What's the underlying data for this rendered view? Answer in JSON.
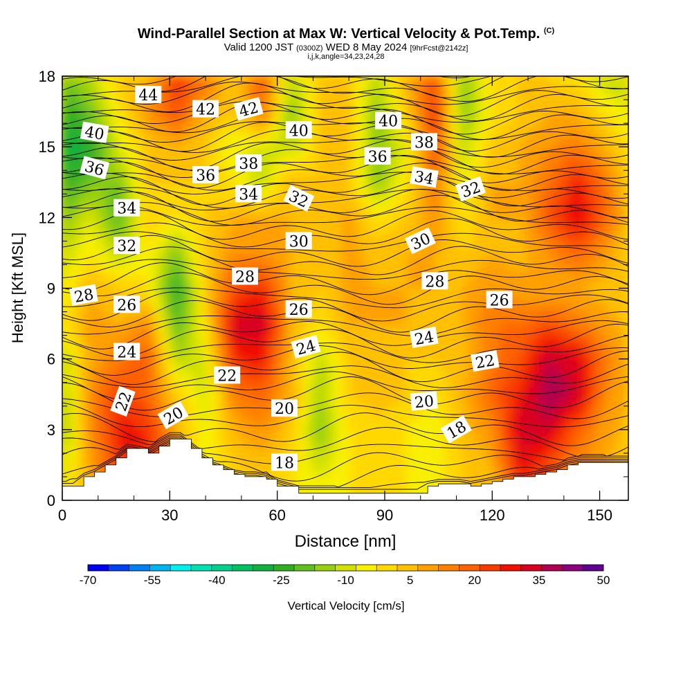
{
  "header": {
    "title": "Wind-Parallel Section at Max W: Vertical Velocity & Pot.Temp.",
    "copyright": "(C)",
    "valid_prefix": "Valid 1200 JST",
    "valid_utc": "(0300Z)",
    "valid_date": "WED 8 May 2024",
    "forecast": "[9hrFcst@2142z]",
    "indices": "i,j,k,angle=34,23,24,28"
  },
  "chart_data": {
    "type": "heatmap",
    "xlabel": "Distance [nm]",
    "ylabel": "Height [Kft MSL]",
    "xlim": [
      0,
      158
    ],
    "ylim": [
      0,
      18
    ],
    "x_ticks": [
      "0",
      "30",
      "60",
      "90",
      "120",
      "150"
    ],
    "x_tick_values": [
      0,
      30,
      60,
      90,
      120,
      150
    ],
    "y_ticks": [
      "0",
      "3",
      "6",
      "9",
      "12",
      "15",
      "18"
    ],
    "y_tick_values": [
      0,
      3,
      6,
      9,
      12,
      15,
      18
    ],
    "colorbar": {
      "label": "Vertical Velocity [cm/s]",
      "tick_labels": [
        "-70",
        "-55",
        "-40",
        "-25",
        "-10",
        "5",
        "20",
        "35",
        "50"
      ],
      "bin_edges": [
        -70,
        -65,
        -60,
        -55,
        -50,
        -45,
        -40,
        -35,
        -30,
        -25,
        -20,
        -15,
        -10,
        -5,
        0,
        5,
        10,
        15,
        20,
        25,
        30,
        35,
        40,
        45,
        50
      ],
      "colors": [
        "#0000f0",
        "#0040f0",
        "#0080f0",
        "#00b4f0",
        "#00f0f0",
        "#00e0b0",
        "#00d08a",
        "#00c060",
        "#10b040",
        "#30b020",
        "#60c020",
        "#98d010",
        "#d0e000",
        "#f8f000",
        "#ffd800",
        "#ffc000",
        "#ffa000",
        "#ff8000",
        "#ff6000",
        "#f83c00",
        "#f01000",
        "#d80020",
        "#b00050",
        "#8c0080",
        "#600090"
      ]
    },
    "w_field": {
      "x": [
        0,
        8,
        16,
        24,
        32,
        40,
        48,
        56,
        64,
        72,
        80,
        88,
        96,
        104,
        112,
        120,
        128,
        136,
        144,
        152,
        158
      ],
      "z": [
        0,
        1.5,
        3,
        4.5,
        6,
        7.5,
        9,
        10.5,
        12,
        13.5,
        15,
        16.5,
        18
      ],
      "values": [
        [
          -5,
          10,
          22,
          12,
          10,
          0,
          0,
          0,
          0,
          0,
          0,
          0,
          0,
          0,
          5,
          5,
          20,
          25,
          10,
          5,
          5
        ],
        [
          -8,
          12,
          28,
          30,
          15,
          -3,
          5,
          8,
          2,
          -8,
          0,
          2,
          0,
          -3,
          5,
          10,
          35,
          25,
          15,
          10,
          8
        ],
        [
          -15,
          15,
          32,
          30,
          10,
          -5,
          10,
          15,
          5,
          -15,
          0,
          3,
          0,
          -5,
          8,
          15,
          38,
          38,
          22,
          12,
          8
        ],
        [
          -12,
          15,
          28,
          22,
          5,
          -8,
          18,
          22,
          10,
          -12,
          5,
          8,
          5,
          0,
          10,
          22,
          32,
          45,
          38,
          15,
          10
        ],
        [
          -12,
          12,
          18,
          25,
          -10,
          -5,
          30,
          32,
          8,
          -10,
          5,
          10,
          5,
          5,
          8,
          18,
          25,
          40,
          35,
          18,
          10
        ],
        [
          0,
          12,
          10,
          15,
          -20,
          0,
          38,
          38,
          10,
          0,
          10,
          10,
          10,
          5,
          10,
          20,
          20,
          25,
          18,
          12,
          8
        ],
        [
          -5,
          10,
          5,
          0,
          -25,
          5,
          25,
          30,
          10,
          5,
          12,
          10,
          10,
          10,
          10,
          15,
          12,
          10,
          10,
          8,
          5
        ],
        [
          -10,
          0,
          -10,
          0,
          -15,
          5,
          15,
          15,
          10,
          5,
          12,
          8,
          10,
          10,
          5,
          10,
          8,
          15,
          22,
          12,
          5
        ],
        [
          -15,
          -5,
          -20,
          5,
          0,
          5,
          10,
          10,
          10,
          5,
          12,
          0,
          5,
          15,
          0,
          10,
          10,
          25,
          35,
          22,
          8
        ],
        [
          -25,
          -15,
          -15,
          5,
          5,
          5,
          0,
          -10,
          10,
          5,
          5,
          -15,
          0,
          20,
          -5,
          10,
          10,
          20,
          32,
          18,
          5
        ],
        [
          -30,
          -25,
          -5,
          5,
          10,
          5,
          -5,
          -5,
          -10,
          5,
          5,
          -15,
          -5,
          25,
          -10,
          5,
          10,
          15,
          18,
          10,
          0
        ],
        [
          -25,
          -15,
          0,
          15,
          25,
          10,
          5,
          20,
          -15,
          5,
          5,
          -15,
          5,
          30,
          -15,
          0,
          5,
          10,
          10,
          0,
          -5
        ],
        [
          -15,
          -10,
          5,
          10,
          30,
          20,
          5,
          25,
          -10,
          5,
          5,
          -10,
          10,
          25,
          -15,
          0,
          5,
          5,
          0,
          -10,
          -10
        ]
      ]
    },
    "terrain": {
      "x": [
        0,
        3,
        6,
        9,
        12,
        15,
        18,
        24,
        27,
        30,
        33,
        36,
        39,
        42,
        45,
        48,
        51,
        54,
        57,
        60,
        66,
        99,
        102,
        105,
        108,
        111,
        114,
        117,
        120,
        123,
        126,
        129,
        132,
        135,
        138,
        141,
        144,
        150,
        155,
        158
      ],
      "z": [
        0.6,
        0.6,
        1.0,
        1.2,
        1.5,
        1.8,
        2.2,
        2.0,
        2.3,
        2.6,
        2.6,
        2.2,
        1.8,
        1.5,
        1.3,
        1.1,
        1.0,
        1.0,
        0.9,
        0.6,
        0.3,
        0.3,
        0.6,
        0.7,
        0.7,
        0.7,
        0.6,
        0.7,
        0.8,
        0.9,
        1.0,
        1.0,
        1.1,
        1.2,
        1.3,
        1.5,
        1.6,
        1.6,
        1.6,
        1.6
      ]
    },
    "isentropes": {
      "levels_K": [
        16,
        16.7,
        17.3,
        18,
        18.7,
        19.3,
        20,
        20.7,
        21.3,
        22,
        22.5,
        23,
        23.5,
        24,
        24.5,
        25,
        25.5,
        26,
        26.5,
        27,
        27.5,
        28,
        28.5,
        29,
        29.5,
        30,
        30.5,
        31,
        31.5,
        32,
        32.5,
        33,
        33.5,
        34,
        34.5,
        35,
        35.5,
        36,
        36.5,
        37,
        37.5,
        38,
        38.5,
        39,
        39.5,
        40,
        40.5,
        41,
        41.5,
        42,
        42.5,
        43,
        43.5,
        44,
        44.5,
        45
      ],
      "theta_vs_height": {
        "height": [
          0,
          1.5,
          3,
          4.5,
          6,
          7.5,
          9,
          10.5,
          12,
          13.5,
          15,
          16.5,
          18
        ],
        "theta": [
          16,
          18,
          20,
          22,
          24,
          26,
          28,
          30,
          32,
          35,
          38,
          41,
          44
        ]
      },
      "labels": [
        {
          "text": "44",
          "x": 24,
          "z": 17.2,
          "angle": 0
        },
        {
          "text": "40",
          "x": 9,
          "z": 15.6,
          "angle": 10
        },
        {
          "text": "36",
          "x": 9,
          "z": 14.1,
          "angle": 15
        },
        {
          "text": "34",
          "x": 18,
          "z": 12.4,
          "angle": 0
        },
        {
          "text": "32",
          "x": 18,
          "z": 10.8,
          "angle": 0
        },
        {
          "text": "28",
          "x": 6,
          "z": 8.7,
          "angle": -10
        },
        {
          "text": "26",
          "x": 18,
          "z": 8.3,
          "angle": 0
        },
        {
          "text": "24",
          "x": 18,
          "z": 6.3,
          "angle": 0
        },
        {
          "text": "22",
          "x": 17,
          "z": 4.2,
          "angle": -70
        },
        {
          "text": "20",
          "x": 31,
          "z": 3.6,
          "angle": -30
        },
        {
          "text": "42",
          "x": 40,
          "z": 16.6,
          "angle": 0
        },
        {
          "text": "36",
          "x": 40,
          "z": 13.8,
          "angle": 0
        },
        {
          "text": "28",
          "x": 51,
          "z": 9.5,
          "angle": 0
        },
        {
          "text": "22",
          "x": 46,
          "z": 5.3,
          "angle": 0
        },
        {
          "text": "42",
          "x": 52,
          "z": 16.6,
          "angle": -15
        },
        {
          "text": "38",
          "x": 52,
          "z": 14.3,
          "angle": 0
        },
        {
          "text": "34",
          "x": 52,
          "z": 13.0,
          "angle": 0
        },
        {
          "text": "40",
          "x": 66,
          "z": 15.7,
          "angle": 0
        },
        {
          "text": "32",
          "x": 66,
          "z": 12.8,
          "angle": 25
        },
        {
          "text": "30",
          "x": 66,
          "z": 11.0,
          "angle": 0
        },
        {
          "text": "26",
          "x": 66,
          "z": 8.1,
          "angle": 0
        },
        {
          "text": "24",
          "x": 68,
          "z": 6.5,
          "angle": -15
        },
        {
          "text": "20",
          "x": 62,
          "z": 3.9,
          "angle": 0
        },
        {
          "text": "18",
          "x": 62,
          "z": 1.6,
          "angle": 0
        },
        {
          "text": "40",
          "x": 91,
          "z": 16.1,
          "angle": 0
        },
        {
          "text": "36",
          "x": 88,
          "z": 14.6,
          "angle": 0
        },
        {
          "text": "38",
          "x": 101,
          "z": 15.2,
          "angle": 0
        },
        {
          "text": "34",
          "x": 101,
          "z": 13.7,
          "angle": 10
        },
        {
          "text": "30",
          "x": 100,
          "z": 11.0,
          "angle": -25
        },
        {
          "text": "28",
          "x": 104,
          "z": 9.3,
          "angle": 0
        },
        {
          "text": "24",
          "x": 101,
          "z": 6.9,
          "angle": -10
        },
        {
          "text": "20",
          "x": 101,
          "z": 4.2,
          "angle": -5
        },
        {
          "text": "18",
          "x": 110,
          "z": 3.0,
          "angle": -30
        },
        {
          "text": "32",
          "x": 114,
          "z": 13.2,
          "angle": -20
        },
        {
          "text": "26",
          "x": 122,
          "z": 8.5,
          "angle": 0
        },
        {
          "text": "22",
          "x": 118,
          "z": 5.9,
          "angle": -10
        }
      ]
    }
  }
}
